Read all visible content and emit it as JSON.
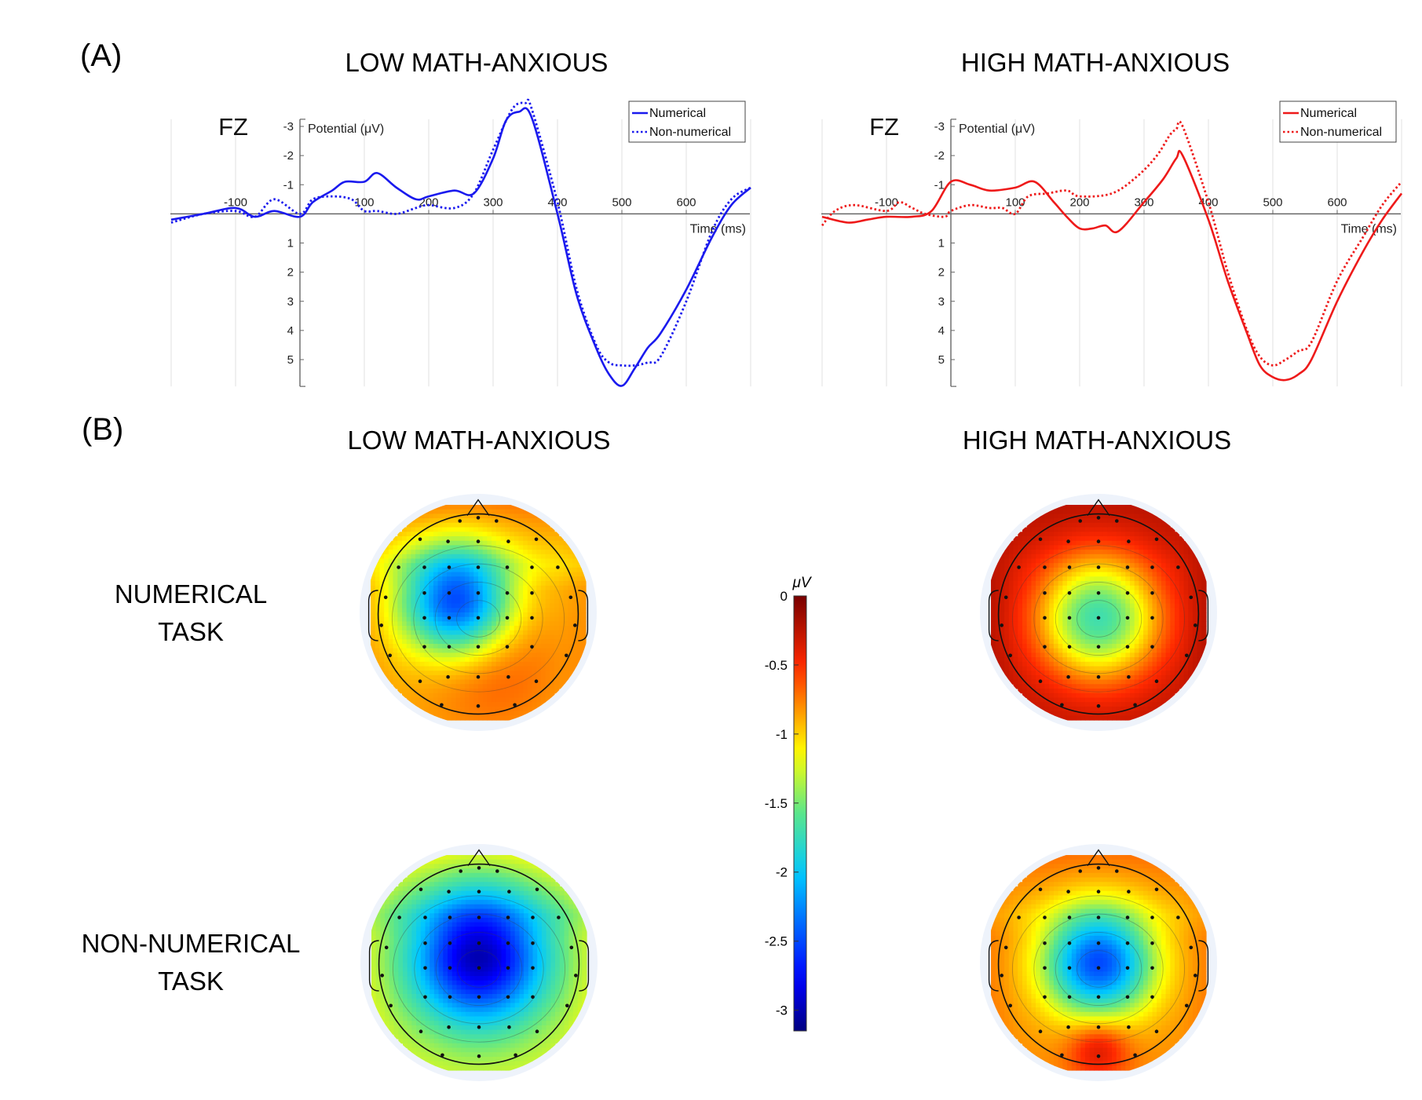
{
  "figure": {
    "panel_a_label": "(A)",
    "panel_b_label": "(B)",
    "low_group_title": "LOW MATH-ANXIOUS",
    "high_group_title": "HIGH MATH-ANXIOUS",
    "row_labels": [
      [
        "NUMERICAL",
        "TASK"
      ],
      [
        "NON-NUMERICAL",
        "TASK"
      ]
    ],
    "colorbar": {
      "unit": "μV",
      "ticks": [
        "0",
        "-0.5",
        "-1",
        "-1.5",
        "-2",
        "-2.5",
        "-3"
      ],
      "range": [
        -3.15,
        0
      ]
    }
  },
  "chart_data": [
    {
      "type": "line",
      "group": "LOW MATH-ANXIOUS",
      "electrode": "FZ",
      "ylabel": "Potential (μV)",
      "xlabel": "Time (ms)",
      "xlim": [
        -200,
        700
      ],
      "ylim": [
        6,
        -4
      ],
      "y_inverted": true,
      "x_ticks": [
        "-100",
        "100",
        "200",
        "300",
        "400",
        "500",
        "600"
      ],
      "y_ticks_neg": [
        "-3",
        "-2",
        "-1"
      ],
      "y_ticks_pos": [
        "1",
        "2",
        "3",
        "4",
        "5"
      ],
      "legend_position": "top-right",
      "grid": "vertical",
      "color": "#1a1aee",
      "series": [
        {
          "name": "Numerical",
          "line_style": "solid",
          "x": [
            -200,
            -150,
            -100,
            -70,
            -40,
            0,
            20,
            50,
            70,
            100,
            120,
            150,
            180,
            200,
            240,
            270,
            300,
            320,
            340,
            360,
            400,
            430,
            460,
            480,
            500,
            520,
            540,
            560,
            600,
            640,
            670,
            700
          ],
          "y": [
            0.2,
            0.0,
            -0.2,
            0.1,
            -0.1,
            0.1,
            -0.4,
            -0.8,
            -1.1,
            -1.1,
            -1.4,
            -0.9,
            -0.5,
            -0.6,
            -0.8,
            -0.7,
            -1.9,
            -3.2,
            -3.5,
            -3.3,
            0.0,
            2.8,
            4.6,
            5.5,
            5.9,
            5.3,
            4.6,
            4.1,
            2.6,
            0.8,
            -0.3,
            -0.9
          ]
        },
        {
          "name": "Non-numerical",
          "line_style": "dotted",
          "x": [
            -200,
            -150,
            -100,
            -70,
            -40,
            0,
            20,
            50,
            80,
            100,
            120,
            150,
            180,
            200,
            240,
            270,
            300,
            330,
            350,
            360,
            400,
            430,
            460,
            480,
            500,
            520,
            540,
            560,
            600,
            640,
            670,
            700
          ],
          "y": [
            0.3,
            0.0,
            -0.1,
            0.1,
            -0.5,
            0.0,
            -0.5,
            -0.6,
            -0.5,
            -0.1,
            -0.1,
            0.0,
            -0.2,
            -0.3,
            -0.2,
            -0.7,
            -2.2,
            -3.6,
            -3.8,
            -3.6,
            -0.4,
            2.6,
            4.5,
            5.1,
            5.2,
            5.2,
            5.1,
            4.9,
            3.0,
            0.6,
            -0.5,
            -0.9
          ]
        }
      ]
    },
    {
      "type": "line",
      "group": "HIGH MATH-ANXIOUS",
      "electrode": "FZ",
      "ylabel": "Potential (μV)",
      "xlabel": "Time (ms)",
      "xlim": [
        -200,
        700
      ],
      "ylim": [
        6,
        -4
      ],
      "y_inverted": true,
      "x_ticks": [
        "-100",
        "100",
        "200",
        "300",
        "400",
        "500",
        "600"
      ],
      "y_ticks_neg": [
        "-3",
        "-2",
        "-1"
      ],
      "y_ticks_pos": [
        "1",
        "2",
        "3",
        "4",
        "5"
      ],
      "legend_position": "top-right",
      "grid": "vertical",
      "color": "#ee1a1a",
      "series": [
        {
          "name": "Numerical",
          "line_style": "solid",
          "x": [
            -200,
            -160,
            -130,
            -100,
            -60,
            -30,
            0,
            30,
            60,
            100,
            130,
            160,
            180,
            200,
            220,
            240,
            260,
            300,
            330,
            350,
            360,
            400,
            430,
            460,
            480,
            500,
            520,
            540,
            560,
            600,
            640,
            670,
            700
          ],
          "y": [
            0.1,
            0.3,
            0.2,
            0.1,
            0.1,
            -0.1,
            -1.1,
            -1.0,
            -0.8,
            -0.9,
            -1.1,
            -0.4,
            0.1,
            0.5,
            0.5,
            0.4,
            0.6,
            -0.4,
            -1.2,
            -1.9,
            -2.0,
            0.2,
            2.3,
            4.1,
            5.2,
            5.6,
            5.7,
            5.5,
            5.0,
            3.0,
            1.3,
            0.2,
            -0.7
          ]
        },
        {
          "name": "Non-numerical",
          "line_style": "dotted",
          "x": [
            -200,
            -180,
            -150,
            -100,
            -80,
            -60,
            -40,
            -10,
            0,
            30,
            60,
            80,
            100,
            120,
            150,
            180,
            200,
            250,
            290,
            320,
            340,
            350,
            360,
            400,
            430,
            460,
            480,
            500,
            520,
            540,
            560,
            600,
            640,
            670,
            700
          ],
          "y": [
            0.4,
            -0.1,
            -0.3,
            -0.1,
            -0.4,
            -0.2,
            0.0,
            0.1,
            -0.1,
            -0.3,
            -0.2,
            -0.2,
            0.0,
            -0.6,
            -0.7,
            -0.8,
            -0.6,
            -0.7,
            -1.3,
            -2.0,
            -2.7,
            -2.9,
            -3.0,
            -0.4,
            2.0,
            4.0,
            4.9,
            5.2,
            5.0,
            4.7,
            4.4,
            2.3,
            0.8,
            -0.3,
            -1.1
          ]
        }
      ]
    },
    {
      "type": "heatmap",
      "subtype": "scalp-topography",
      "unit": "μV",
      "color_range": [
        -3.15,
        0
      ],
      "maps": [
        {
          "group": "LOW MATH-ANXIOUS",
          "task": "NUMERICAL TASK",
          "baseline": -0.9,
          "peaks": [
            [
              -0.2,
              -0.1,
              0.35,
              -2.6
            ],
            [
              0.1,
              0.45,
              0.45,
              -0.6
            ]
          ],
          "front_delta": 1.3
        },
        {
          "group": "HIGH MATH-ANXIOUS",
          "task": "NUMERICAL TASK",
          "baseline": -0.25,
          "peaks": [
            [
              0.0,
              0.05,
              0.4,
              -1.7
            ]
          ],
          "front_delta": 0.25
        },
        {
          "group": "LOW MATH-ANXIOUS",
          "task": "NON-NUMERICAL TASK",
          "baseline": -1.2,
          "peaks": [
            [
              0.0,
              -0.05,
              0.45,
              -3.0
            ]
          ],
          "front_delta": 1.1
        },
        {
          "group": "HIGH MATH-ANXIOUS",
          "task": "NON-NUMERICAL TASK",
          "baseline": -0.8,
          "peaks": [
            [
              0.0,
              0.0,
              0.35,
              -2.5
            ],
            [
              0.0,
              0.8,
              0.2,
              -0.3
            ]
          ],
          "front_delta": 0.75
        }
      ]
    }
  ]
}
